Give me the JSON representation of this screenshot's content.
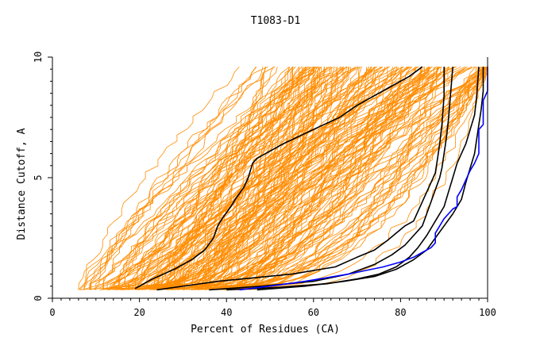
{
  "chart_data": {
    "type": "line",
    "title": "T1083-D1",
    "xlabel": "Percent of Residues (CA)",
    "ylabel": "Distance Cutoff, A",
    "xlim": [
      0,
      100
    ],
    "ylim": [
      0,
      10
    ],
    "x_ticks": [
      0,
      20,
      40,
      60,
      80,
      100
    ],
    "x_tick_labels": [
      "0",
      "20",
      "40",
      "60",
      "80",
      "100"
    ],
    "y_ticks": [
      0,
      5,
      10
    ],
    "y_tick_labels": [
      "0",
      "5",
      "10"
    ],
    "grid": false,
    "legend": "none",
    "colors": {
      "background_model": "#ff8c00",
      "highlight_model": "#000000",
      "best_model": "#0000ff",
      "axis": "#000000"
    },
    "background_models": {
      "count": 190,
      "x_range_at_low_cutoff": [
        6,
        45
      ],
      "x_range_at_high_cutoff": [
        42,
        100
      ],
      "y_start": 0.35,
      "y_end": 9.6
    },
    "highlight_series": [
      {
        "name": "black-1",
        "color": "#000000",
        "x": [
          19,
          23,
          28,
          32,
          35,
          37,
          38,
          39,
          41,
          42,
          44,
          45,
          46,
          47,
          49,
          53,
          60,
          66,
          70,
          74,
          78,
          82,
          85
        ],
        "y": [
          0.4,
          0.8,
          1.2,
          1.6,
          2.0,
          2.5,
          3.0,
          3.3,
          3.8,
          4.1,
          4.6,
          5.0,
          5.6,
          5.8,
          6.0,
          6.4,
          7.0,
          7.5,
          8.0,
          8.4,
          8.8,
          9.2,
          9.6
        ]
      },
      {
        "name": "black-2",
        "color": "#000000",
        "x": [
          24,
          38,
          55,
          65,
          70,
          74,
          77,
          79,
          81,
          83,
          84,
          85,
          86,
          87,
          88,
          88.5,
          89,
          89.5,
          90,
          90
        ],
        "y": [
          0.35,
          0.7,
          1.0,
          1.3,
          1.7,
          2.0,
          2.4,
          2.7,
          3.0,
          3.2,
          3.6,
          4.0,
          4.4,
          4.8,
          5.2,
          5.8,
          6.4,
          7.2,
          8.4,
          9.6
        ]
      },
      {
        "name": "black-3",
        "color": "#000000",
        "x": [
          36,
          48,
          60,
          68,
          74,
          78,
          81,
          83,
          85,
          86,
          87,
          88,
          89,
          89.5,
          90,
          90.5,
          91,
          92
        ],
        "y": [
          0.35,
          0.5,
          0.7,
          1.0,
          1.4,
          1.8,
          2.2,
          2.6,
          3.0,
          3.5,
          4.0,
          4.5,
          5.0,
          5.4,
          6.0,
          6.6,
          7.4,
          9.6
        ]
      },
      {
        "name": "black-4",
        "color": "#000000",
        "x": [
          40,
          52,
          63,
          70,
          75,
          79,
          82,
          84,
          86,
          88,
          90,
          91,
          92,
          93,
          94,
          95,
          96,
          97,
          97.5,
          98
        ],
        "y": [
          0.35,
          0.45,
          0.6,
          0.8,
          1.0,
          1.3,
          1.7,
          2.1,
          2.6,
          3.2,
          3.8,
          4.4,
          5.0,
          5.6,
          6.0,
          6.4,
          7.0,
          7.6,
          8.4,
          9.6
        ]
      },
      {
        "name": "black-5",
        "color": "#000000",
        "x": [
          47,
          58,
          67,
          74,
          79,
          83,
          86,
          88,
          90,
          92,
          94,
          95,
          96,
          97,
          97.5,
          98,
          98.5,
          99,
          99
        ],
        "y": [
          0.35,
          0.5,
          0.7,
          0.9,
          1.2,
          1.6,
          2.0,
          2.5,
          3.0,
          3.5,
          4.1,
          4.8,
          5.4,
          6.0,
          6.6,
          7.2,
          7.8,
          8.6,
          9.6
        ]
      }
    ],
    "best_series": {
      "name": "blue",
      "color": "#0000ff",
      "x": [
        43,
        52,
        58,
        63,
        68,
        72,
        76,
        80,
        83,
        85,
        87,
        88,
        88,
        89,
        90,
        91,
        92,
        93,
        93,
        94,
        95,
        96,
        97,
        98,
        98,
        98,
        99,
        99,
        99,
        100,
        100,
        100
      ],
      "y": [
        0.35,
        0.55,
        0.7,
        0.85,
        1.0,
        1.15,
        1.3,
        1.5,
        1.7,
        1.9,
        2.1,
        2.3,
        2.7,
        3.0,
        3.3,
        3.5,
        3.7,
        3.8,
        4.2,
        4.5,
        4.9,
        5.3,
        5.6,
        6.0,
        6.4,
        7.0,
        7.2,
        7.6,
        8.2,
        8.6,
        9.0,
        9.6
      ]
    }
  }
}
